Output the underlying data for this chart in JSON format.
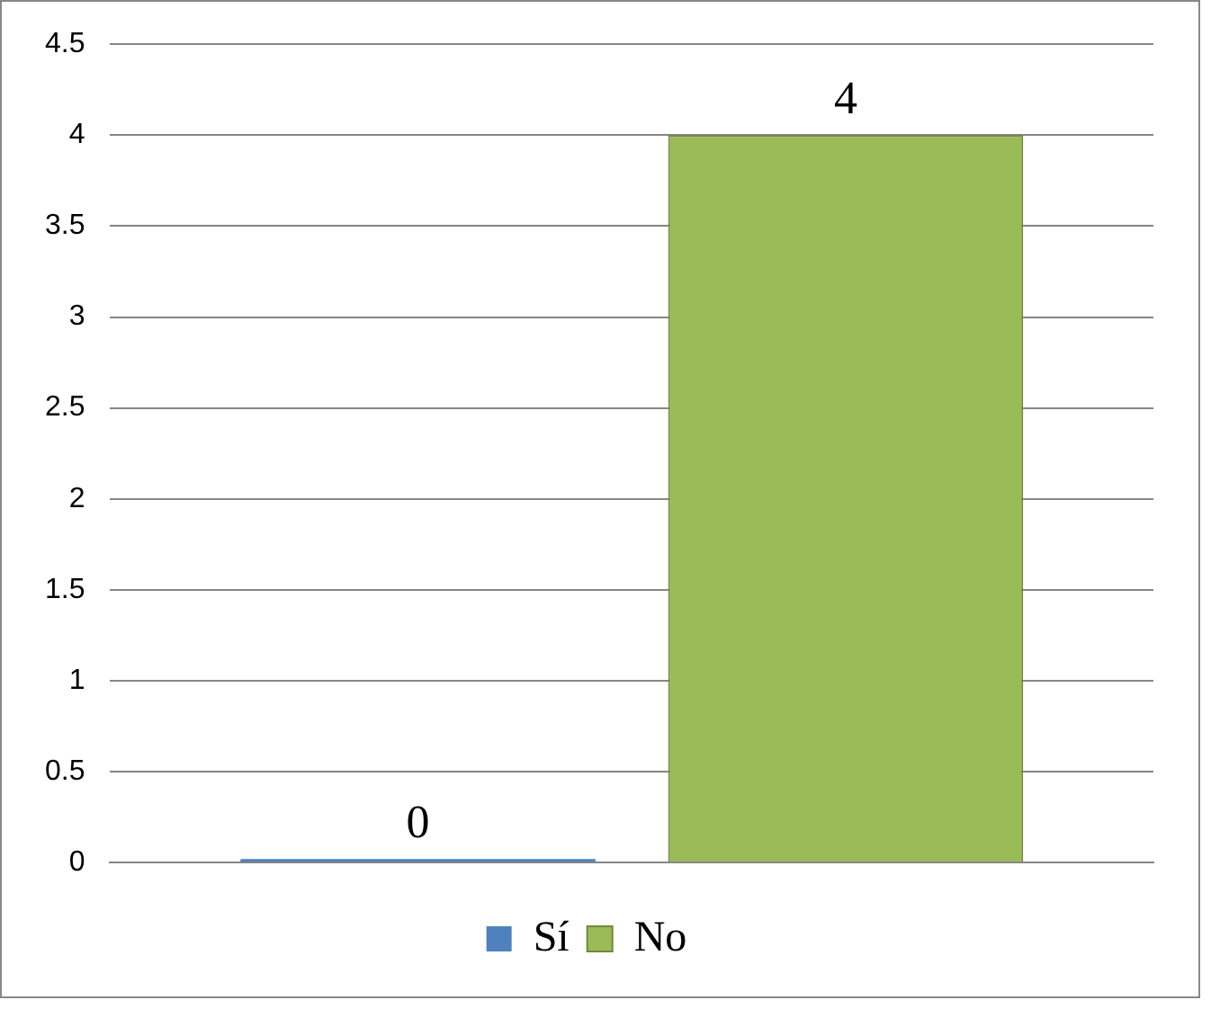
{
  "chart_data": {
    "type": "bar",
    "categories": [
      null
    ],
    "series": [
      {
        "name": "Sí",
        "color": "#4f81bd",
        "values": [
          0
        ]
      },
      {
        "name": "No",
        "color": "#9bbb59",
        "values": [
          4
        ]
      }
    ],
    "ylim": [
      0,
      4.5
    ],
    "yticks": [
      0,
      0.5,
      1,
      1.5,
      2,
      2.5,
      3,
      3.5,
      4,
      4.5
    ],
    "grid": "y",
    "legend": "bottom",
    "data_labels": true
  }
}
